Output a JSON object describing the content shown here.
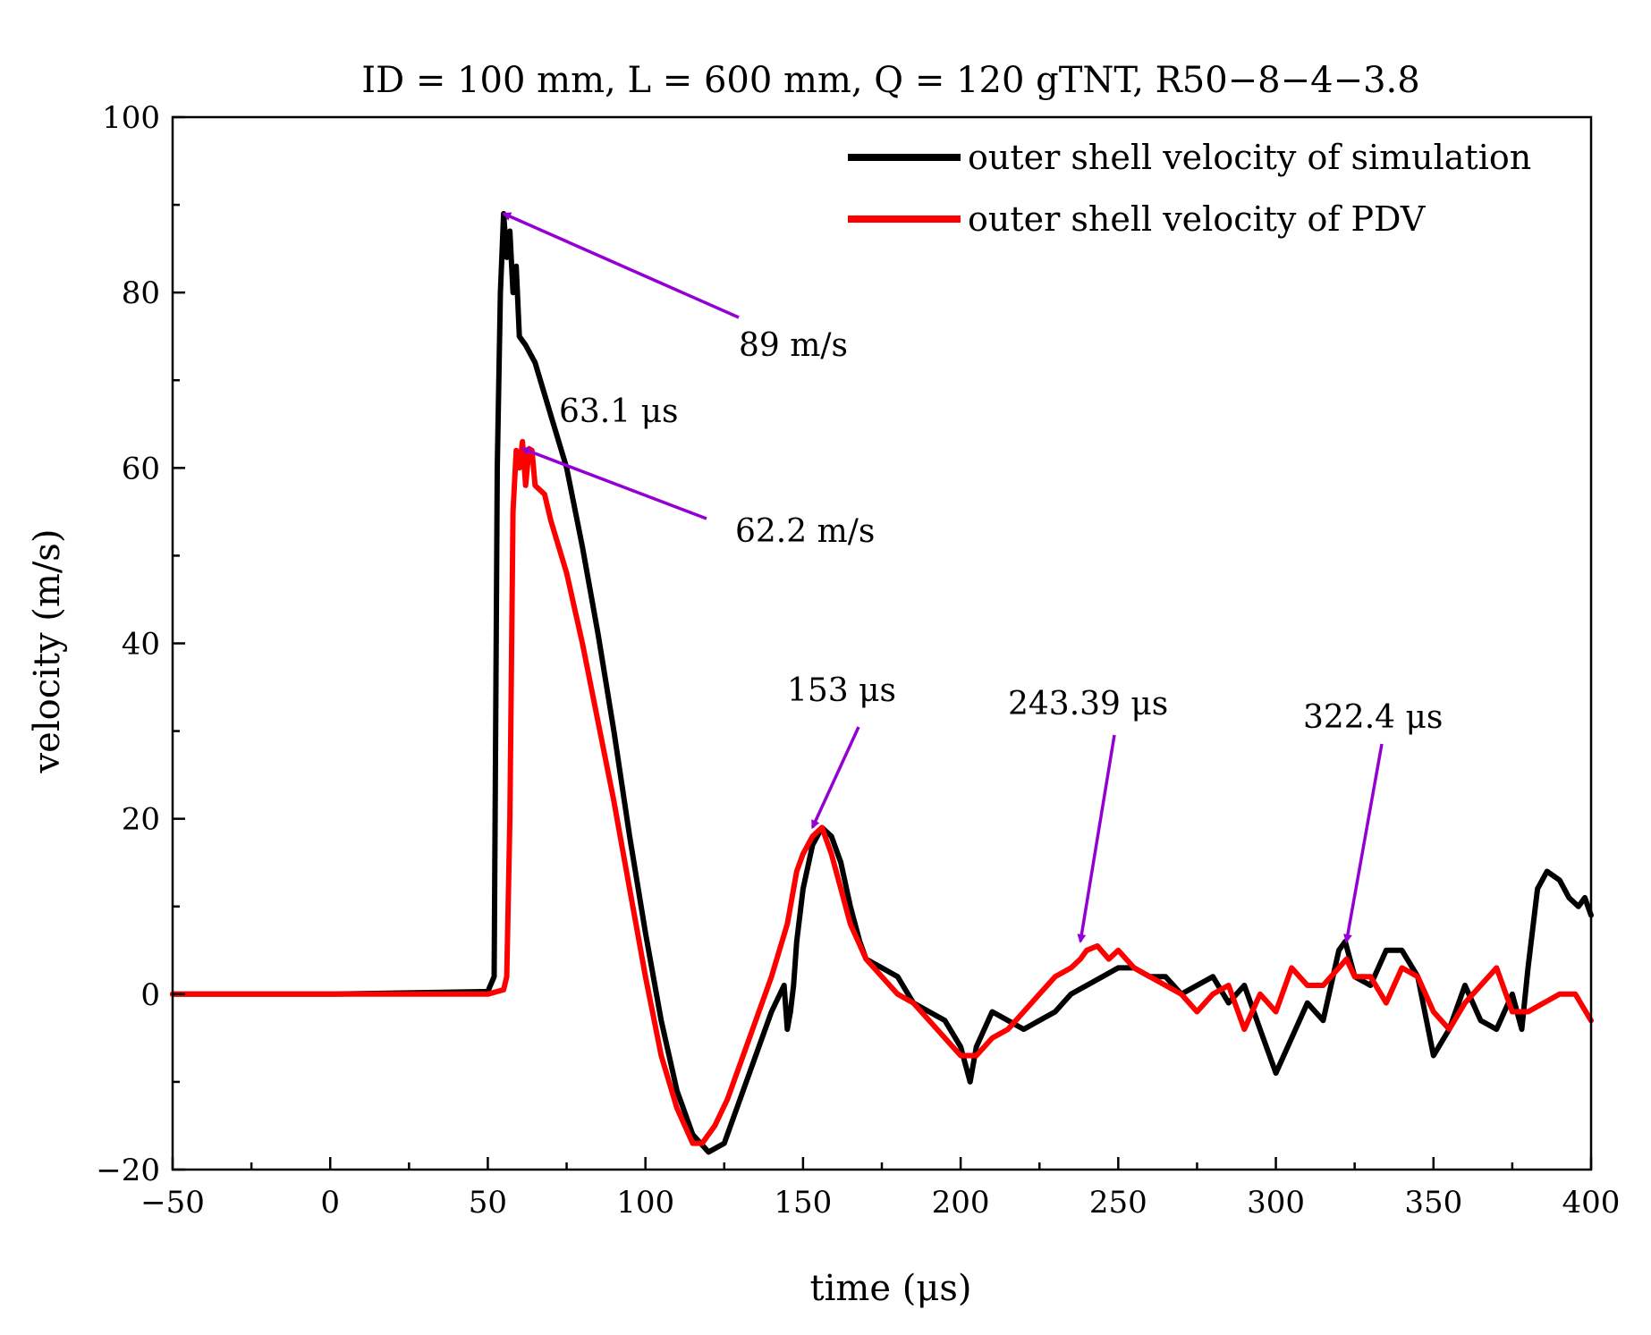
{
  "chart_data": {
    "type": "line",
    "title": "ID = 100 mm, L = 600 mm, Q = 120 gTNT, R50−8−4−3.8",
    "xlabel": "time (μs)",
    "ylabel": "velocity (m/s)",
    "xlim": [
      -50,
      400
    ],
    "ylim": [
      -20,
      100
    ],
    "x_ticks": [
      -50,
      0,
      50,
      100,
      150,
      200,
      250,
      300,
      350,
      400
    ],
    "x_tick_labels": [
      "−50",
      "0",
      "50",
      "100",
      "150",
      "200",
      "250",
      "300",
      "350",
      "400"
    ],
    "y_ticks": [
      -20,
      0,
      20,
      40,
      60,
      80,
      100
    ],
    "y_tick_labels": [
      "−20",
      "0",
      "20",
      "40",
      "60",
      "80",
      "100"
    ],
    "grid": false,
    "legend_position": "top-right",
    "series": [
      {
        "name": "outer shell velocity of simulation",
        "color": "#000000",
        "x": [
          -50,
          0,
          50,
          52,
          53,
          54,
          55,
          56,
          57,
          58,
          59,
          60,
          62,
          65,
          70,
          75,
          80,
          85,
          90,
          95,
          100,
          105,
          110,
          115,
          120,
          125,
          130,
          135,
          140,
          144,
          145,
          146,
          147,
          148,
          150,
          153,
          156,
          159,
          162,
          165,
          168,
          170,
          175,
          180,
          185,
          190,
          195,
          200,
          203,
          205,
          210,
          215,
          220,
          225,
          230,
          235,
          240,
          245,
          250,
          255,
          260,
          265,
          270,
          275,
          280,
          285,
          290,
          295,
          300,
          305,
          310,
          315,
          320,
          322,
          325,
          330,
          335,
          340,
          345,
          350,
          355,
          360,
          365,
          370,
          375,
          378,
          380,
          383,
          386,
          390,
          393,
          396,
          398,
          400
        ],
        "y": [
          0,
          0,
          0.3,
          2,
          60,
          80,
          89,
          84,
          87,
          80,
          83,
          75,
          74,
          72,
          66,
          60,
          51,
          41,
          30,
          18,
          7,
          -3,
          -11,
          -16,
          -18,
          -17,
          -12,
          -7,
          -2,
          1,
          -4,
          -2,
          1,
          6,
          12,
          17,
          19,
          18,
          15,
          10,
          6,
          4,
          3,
          2,
          -1,
          -2,
          -3,
          -6,
          -10,
          -6,
          -2,
          -3,
          -4,
          -3,
          -2,
          0,
          1,
          2,
          3,
          3,
          2,
          2,
          0,
          1,
          2,
          -1,
          1,
          -4,
          -9,
          -5,
          -1,
          -3,
          5,
          6,
          2,
          1,
          5,
          5,
          2,
          -7,
          -4,
          1,
          -3,
          -4,
          0,
          -4,
          3,
          12,
          14,
          13,
          11,
          10,
          11,
          9
        ]
      },
      {
        "name": "outer shell velocity of PDV",
        "color": "#ff0000",
        "x": [
          -50,
          0,
          50,
          55,
          56,
          57,
          58,
          59,
          60,
          61,
          62,
          63.1,
          64,
          65,
          68,
          70,
          75,
          80,
          85,
          90,
          95,
          100,
          105,
          110,
          115,
          118,
          122,
          126,
          130,
          135,
          140,
          145,
          148,
          150,
          153,
          156,
          159,
          162,
          165,
          170,
          175,
          180,
          185,
          190,
          195,
          200,
          205,
          210,
          215,
          220,
          225,
          230,
          235,
          238,
          240,
          243.39,
          247,
          250,
          255,
          260,
          265,
          270,
          275,
          280,
          285,
          290,
          295,
          300,
          305,
          310,
          315,
          320,
          322.4,
          325,
          330,
          335,
          340,
          345,
          350,
          355,
          360,
          365,
          370,
          375,
          380,
          385,
          390,
          395,
          400
        ],
        "y": [
          0,
          0,
          0,
          0.5,
          2,
          20,
          55,
          62,
          60,
          63,
          58,
          62.2,
          62,
          58,
          57,
          54,
          48,
          40,
          31,
          22,
          12,
          2,
          -7,
          -13,
          -17,
          -17,
          -15,
          -12,
          -8,
          -3,
          2,
          8,
          14,
          16,
          18,
          19,
          16,
          12,
          8,
          4,
          2,
          0,
          -1,
          -3,
          -5,
          -7,
          -7,
          -5,
          -4,
          -2,
          0,
          2,
          3,
          4,
          5,
          5.5,
          4,
          5,
          3,
          2,
          1,
          0,
          -2,
          0,
          1,
          -4,
          0,
          -2,
          3,
          1,
          1,
          3,
          4,
          2,
          2,
          -1,
          3,
          2,
          -2,
          -4,
          -1,
          1,
          3,
          -2,
          -2,
          -1,
          0,
          0,
          -3
        ]
      }
    ],
    "annotations": [
      {
        "text": "89 m/s",
        "x": 55,
        "y": 89
      },
      {
        "text": "63.1 μs",
        "x": null,
        "y": null
      },
      {
        "text": "62.2 m/s",
        "x": 61,
        "y": 62.2
      },
      {
        "text": "153 μs",
        "x": 153,
        "y": 19
      },
      {
        "text": "243.39 μs",
        "x": 238,
        "y": 6
      },
      {
        "text": "322.4 μs",
        "x": 322.4,
        "y": 6
      }
    ],
    "annotation_color": "#9400d3"
  }
}
